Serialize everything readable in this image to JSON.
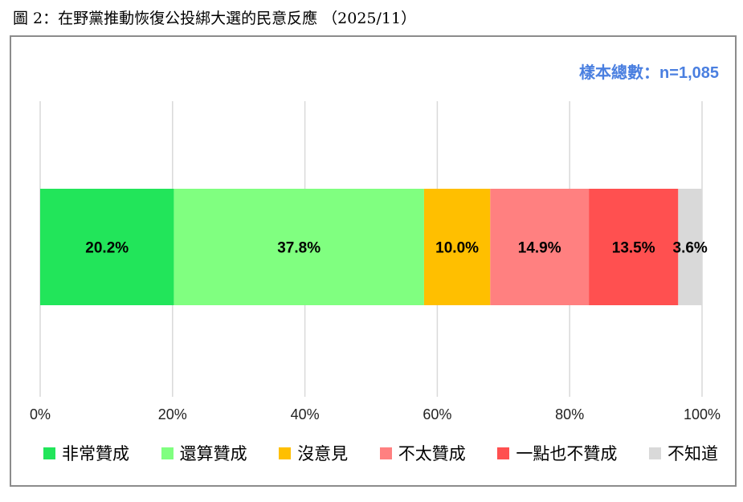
{
  "title": "圖 2：在野黨推動恢復公投綁大選的民意反應 （2025/11）",
  "sample_label": "樣本總數：n=1,085",
  "chart_data": {
    "type": "bar",
    "orientation": "horizontal-stacked",
    "xlim": [
      0,
      100
    ],
    "x_ticks": [
      0,
      20,
      40,
      60,
      80,
      100
    ],
    "x_tick_labels": [
      "0%",
      "20%",
      "40%",
      "60%",
      "80%",
      "100%"
    ],
    "grid": true,
    "legend_position": "bottom",
    "series": [
      {
        "name": "非常贊成",
        "value": 20.2,
        "label": "20.2%",
        "color": "#22e55a"
      },
      {
        "name": "還算贊成",
        "value": 37.8,
        "label": "37.8%",
        "color": "#80ff80"
      },
      {
        "name": "沒意見",
        "value": 10.0,
        "label": "10.0%",
        "color": "#ffbf00"
      },
      {
        "name": "不太贊成",
        "value": 14.9,
        "label": "14.9%",
        "color": "#ff8080"
      },
      {
        "name": "一點也不贊成",
        "value": 13.5,
        "label": "13.5%",
        "color": "#ff5050"
      },
      {
        "name": "不知道",
        "value": 3.6,
        "label": "3.6%",
        "color": "#d9d9d9"
      }
    ]
  }
}
